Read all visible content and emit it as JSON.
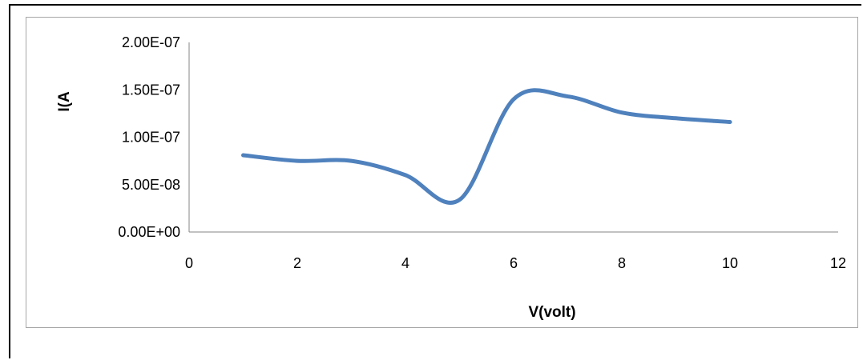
{
  "chart_data": {
    "type": "line",
    "title": "",
    "xlabel": "V(volt)",
    "ylabel": "I(A",
    "xlim": [
      0,
      12
    ],
    "ylim": [
      0,
      2e-07
    ],
    "x_ticks": [
      "0",
      "2",
      "4",
      "6",
      "8",
      "10",
      "12"
    ],
    "y_ticks": [
      "0.00E+00",
      "5.00E-08",
      "1.00E-07",
      "1.50E-07",
      "2.00E-07"
    ],
    "grid": false,
    "legend": "none",
    "series": [
      {
        "color": "#4f81bd",
        "x": [
          1,
          2,
          3,
          4,
          5,
          6,
          7,
          8,
          9,
          10
        ],
        "y": [
          8.1e-08,
          7.5e-08,
          7.5e-08,
          6e-08,
          3.4e-08,
          1.4e-07,
          1.43e-07,
          1.26e-07,
          1.2e-07,
          1.16e-07
        ]
      }
    ]
  }
}
